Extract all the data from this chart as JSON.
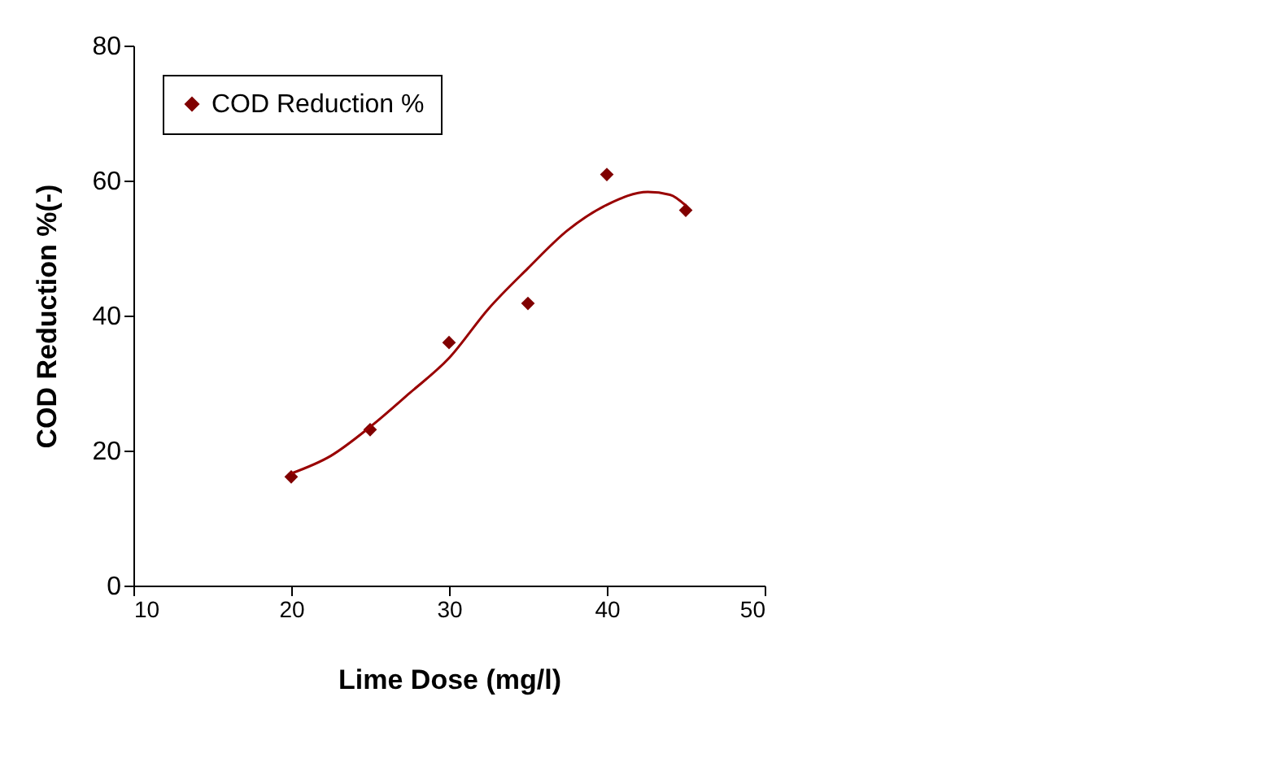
{
  "chart_data": {
    "type": "scatter",
    "xlabel": "Lime Dose (mg/l)",
    "ylabel": "COD Reduction %(-)",
    "xlim": [
      10,
      50
    ],
    "xticks": [
      10,
      20,
      30,
      40,
      50
    ],
    "ylim": [
      0,
      80
    ],
    "yticks": [
      0,
      20,
      40,
      60,
      80
    ],
    "grid": false,
    "legend": "top left",
    "series": [
      {
        "name": "COD Reduction %",
        "color": "#800000",
        "marker": "diamond",
        "x": [
          20,
          25,
          30,
          35,
          40,
          45
        ],
        "values": [
          16.1,
          23.1,
          36.0,
          41.8,
          60.9,
          55.6
        ]
      },
      {
        "type": "line",
        "color": "#990000",
        "line_style": "solid",
        "marker": "none",
        "x": [
          20,
          22.5,
          25,
          27.5,
          30,
          32.5,
          35,
          37.5,
          40,
          42.6,
          44,
          45
        ],
        "values": [
          16.6,
          19.2,
          23.5,
          28.5,
          33.7,
          41.0,
          47.0,
          52.6,
          56.4,
          58.3,
          57.9,
          56.3
        ]
      }
    ]
  }
}
